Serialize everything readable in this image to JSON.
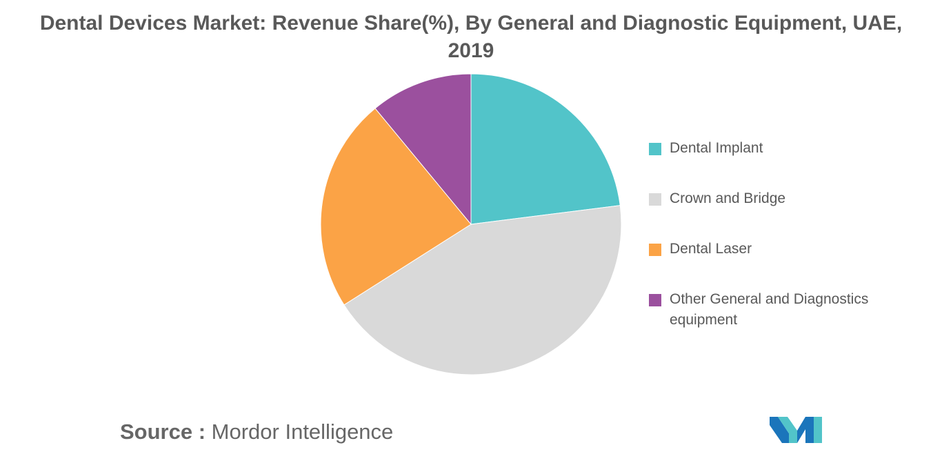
{
  "chart_data": {
    "type": "pie",
    "title_lines": [
      "Dental Devices Market: Revenue Share(%), By General and Diagnostic Equipment, UAE,",
      "2019"
    ],
    "categories": [
      "Dental Implant",
      "Crown and Bridge",
      "Dental Laser",
      "Other General and Diagnostics equipment"
    ],
    "values": [
      23,
      43,
      23,
      11
    ],
    "colors": [
      "#52c4c9",
      "#d9d9d9",
      "#fba346",
      "#9b509e"
    ],
    "legend_position": "right"
  },
  "source": {
    "label": "Source :",
    "text": "Mordor Intelligence"
  },
  "logo": {
    "icon": "mordor-intelligence-logo",
    "colors": [
      "#1b75bb",
      "#52c4c9"
    ]
  }
}
